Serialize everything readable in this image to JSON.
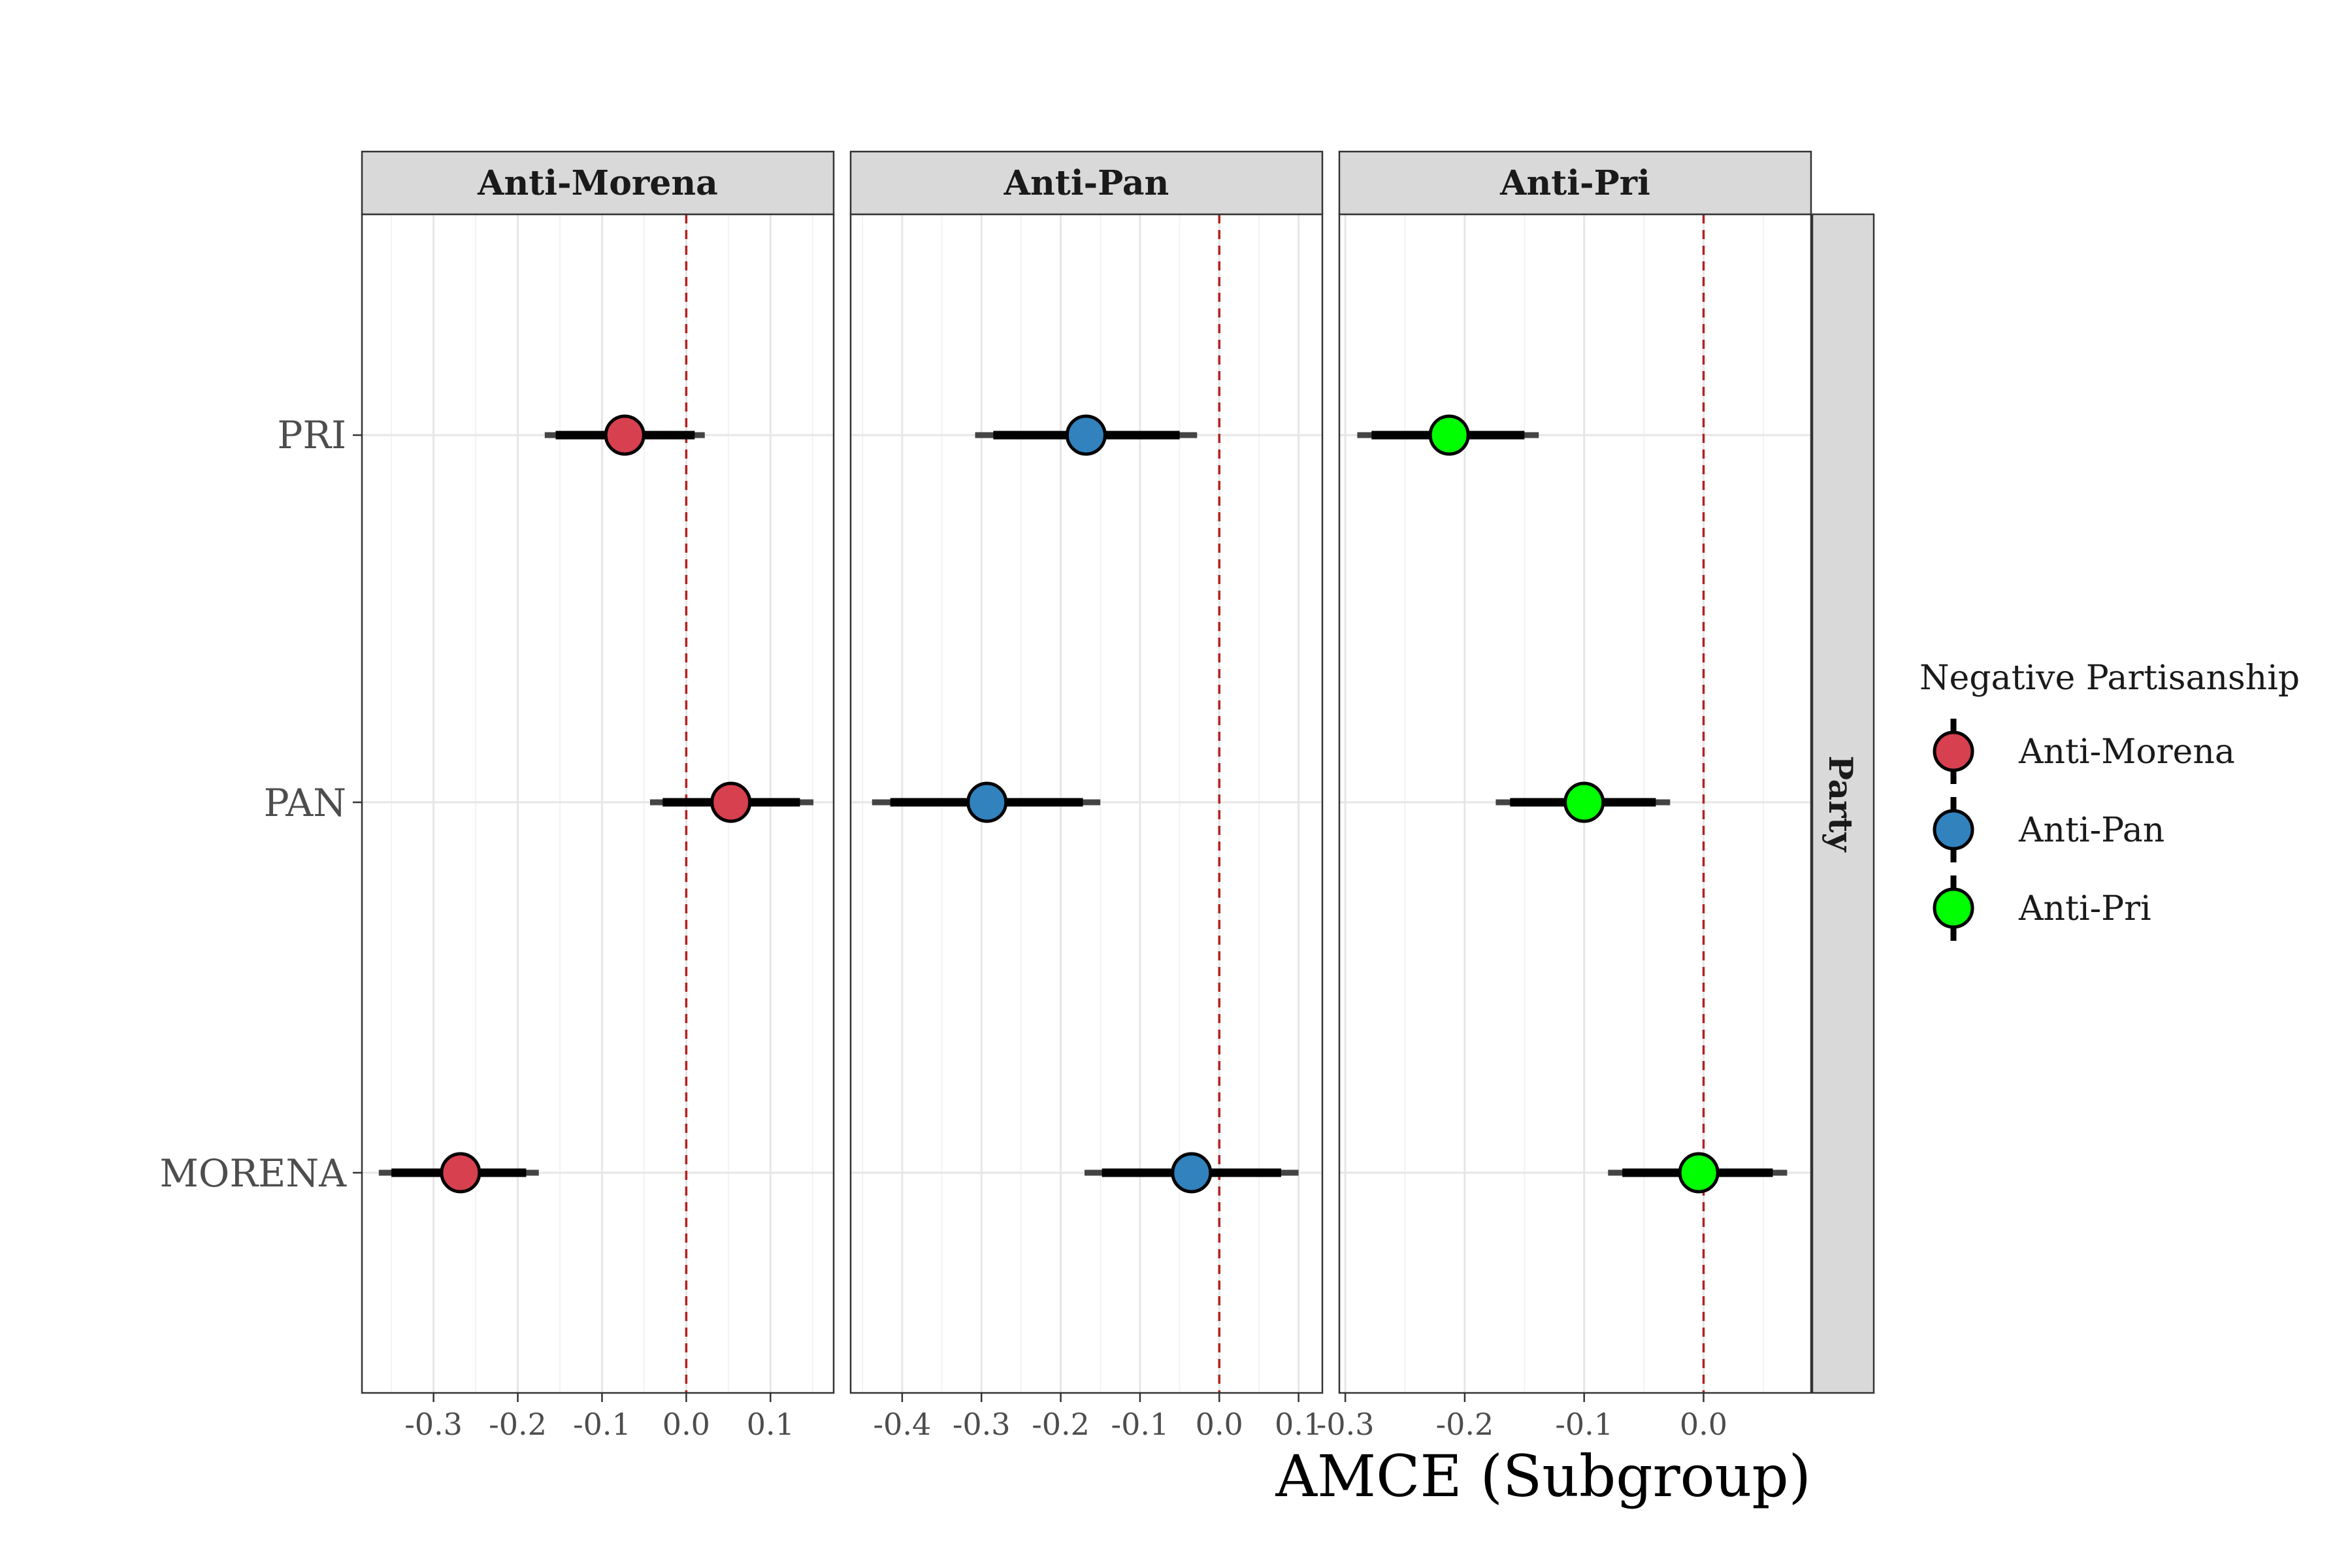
{
  "chart_data": {
    "type": "scatter",
    "subtype": "coefficient-plot-with-confidence-intervals",
    "xlabel": "AMCE (Subgroup)",
    "ylabel": "",
    "facet_row_label": "Party",
    "categories": [
      "PRI",
      "PAN",
      "MORENA"
    ],
    "reference_line": {
      "x": 0.0,
      "color": "#b22222",
      "style": "dashed"
    },
    "legend": {
      "title": "Negative Partisanship",
      "position": "right",
      "items": [
        {
          "label": "Anti-Morena",
          "color": "#d7404f"
        },
        {
          "label": "Anti-Pan",
          "color": "#3182bd"
        },
        {
          "label": "Anti-Pri",
          "color": "#00ff00"
        }
      ]
    },
    "grid": true,
    "panels": [
      {
        "title": "Anti-Morena",
        "color": "#d7404f",
        "xlim": [
          -0.385,
          0.175
        ],
        "ticks": [
          -0.3,
          -0.2,
          -0.1,
          0.0,
          0.1
        ],
        "tick_labels": [
          "-0.3",
          "-0.2",
          "-0.1",
          "0.0",
          "0.1"
        ],
        "points": [
          {
            "category": "PRI",
            "estimate": -0.073,
            "ci90": [
              -0.155,
              0.01
            ],
            "ci95": [
              -0.168,
              0.022
            ]
          },
          {
            "category": "PAN",
            "estimate": 0.053,
            "ci90": [
              -0.028,
              0.135
            ],
            "ci95": [
              -0.043,
              0.151
            ]
          },
          {
            "category": "MORENA",
            "estimate": -0.268,
            "ci90": [
              -0.35,
              -0.19
            ],
            "ci95": [
              -0.365,
              -0.175
            ]
          }
        ]
      },
      {
        "title": "Anti-Pan",
        "color": "#3182bd",
        "xlim": [
          -0.465,
          0.13
        ],
        "ticks": [
          -0.4,
          -0.3,
          -0.2,
          -0.1,
          0.0,
          0.1
        ],
        "tick_labels": [
          "-0.4",
          "-0.3",
          "-0.2",
          "-0.1",
          "0.0",
          "0.1"
        ],
        "points": [
          {
            "category": "PRI",
            "estimate": -0.168,
            "ci90": [
              -0.285,
              -0.05
            ],
            "ci95": [
              -0.308,
              -0.028
            ]
          },
          {
            "category": "PAN",
            "estimate": -0.293,
            "ci90": [
              -0.415,
              -0.172
            ],
            "ci95": [
              -0.438,
              -0.15
            ]
          },
          {
            "category": "MORENA",
            "estimate": -0.035,
            "ci90": [
              -0.148,
              0.078
            ],
            "ci95": [
              -0.17,
              0.1
            ]
          }
        ]
      },
      {
        "title": "Anti-Pri",
        "color": "#00ff00",
        "xlim": [
          -0.305,
          0.09
        ],
        "ticks": [
          -0.3,
          -0.2,
          -0.1,
          0.0
        ],
        "tick_labels": [
          "-0.3",
          "-0.2",
          "-0.1",
          "0.0"
        ],
        "points": [
          {
            "category": "PRI",
            "estimate": -0.213,
            "ci90": [
              -0.278,
              -0.15
            ],
            "ci95": [
              -0.29,
              -0.138
            ]
          },
          {
            "category": "PAN",
            "estimate": -0.1,
            "ci90": [
              -0.162,
              -0.04
            ],
            "ci95": [
              -0.174,
              -0.028
            ]
          },
          {
            "category": "MORENA",
            "estimate": -0.004,
            "ci90": [
              -0.068,
              0.058
            ],
            "ci95": [
              -0.08,
              0.07
            ]
          }
        ]
      }
    ]
  }
}
